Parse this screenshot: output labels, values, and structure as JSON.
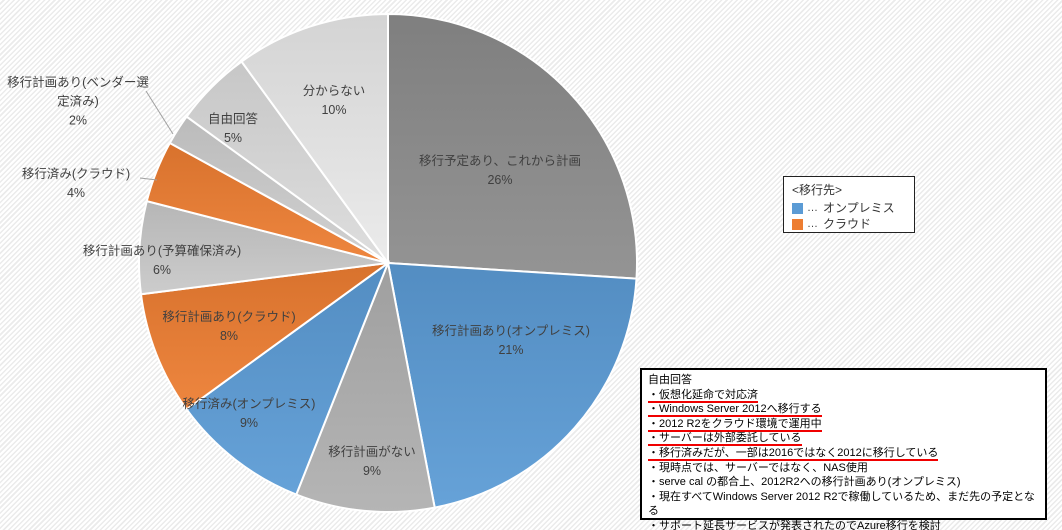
{
  "chart_data": {
    "type": "pie",
    "title": "",
    "unit": "%",
    "total": 100,
    "layout_hints": {
      "start_angle_deg": 0,
      "direction": "clockwise",
      "labels": "category name + percent inside/beside slices",
      "legend_position": "right",
      "background_pattern": "light diagonal hatch"
    },
    "slices": [
      {
        "label": "移行予定あり、これから計画",
        "pct": 26,
        "color": "#8C8C8C"
      },
      {
        "label": "移行計画あり(オンプレミス)",
        "pct": 21,
        "color": "#5B9BD5"
      },
      {
        "label": "移行計画がない",
        "pct": 9,
        "color": "#AFAFAF"
      },
      {
        "label": "移行済み(オンプレミス)",
        "pct": 9,
        "color": "#5B9BD5"
      },
      {
        "label": "移行計画あり(クラウド)",
        "pct": 8,
        "color": "#ED7D31"
      },
      {
        "label": "移行計画あり(予算確保済み)",
        "pct": 6,
        "color": "#C8C8C8"
      },
      {
        "label": "移行済み(クラウド)",
        "pct": 4,
        "color": "#ED7D31"
      },
      {
        "label": "移行計画あり(ベンダー選定済み)",
        "pct": 2,
        "color": "#CDCDCD"
      },
      {
        "label": "自由回答",
        "pct": 5,
        "color": "#DBDBDB"
      },
      {
        "label": "分からない",
        "pct": 10,
        "color": "#E9E9E9"
      }
    ],
    "legend": {
      "title": "<移行先>",
      "marker_prefix": "…",
      "items": [
        {
          "label": "オンプレミス",
          "color": "#5B9BD5"
        },
        {
          "label": "クラウド",
          "color": "#ED7D31"
        }
      ]
    }
  },
  "callout": {
    "header": "自由回答",
    "underline_color": "#f00000",
    "items": [
      {
        "text": "・仮想化延命で対応済",
        "underline": true
      },
      {
        "text": "・Windows Server 2012へ移行する",
        "underline": true
      },
      {
        "text": "・2012 R2をクラウド環境で運用中",
        "underline": true
      },
      {
        "text": "・サーバーは外部委託している",
        "underline": true
      },
      {
        "text": "・移行済みだが、一部は2016ではなく2012に移行している",
        "underline": true
      },
      {
        "text": "・現時点では、サーバーではなく、NAS使用",
        "underline": false
      },
      {
        "text": "・serve cal の都合上、2012R2への移行計画あり(オンプレミス)",
        "underline": false
      },
      {
        "text": "・現在すべてWindows Server 2012 R2で稼働しているため、まだ先の予定となる",
        "underline": false
      },
      {
        "text": "・サポート延長サービスが発表されたのでAzure移行を検討",
        "underline": false
      }
    ]
  }
}
